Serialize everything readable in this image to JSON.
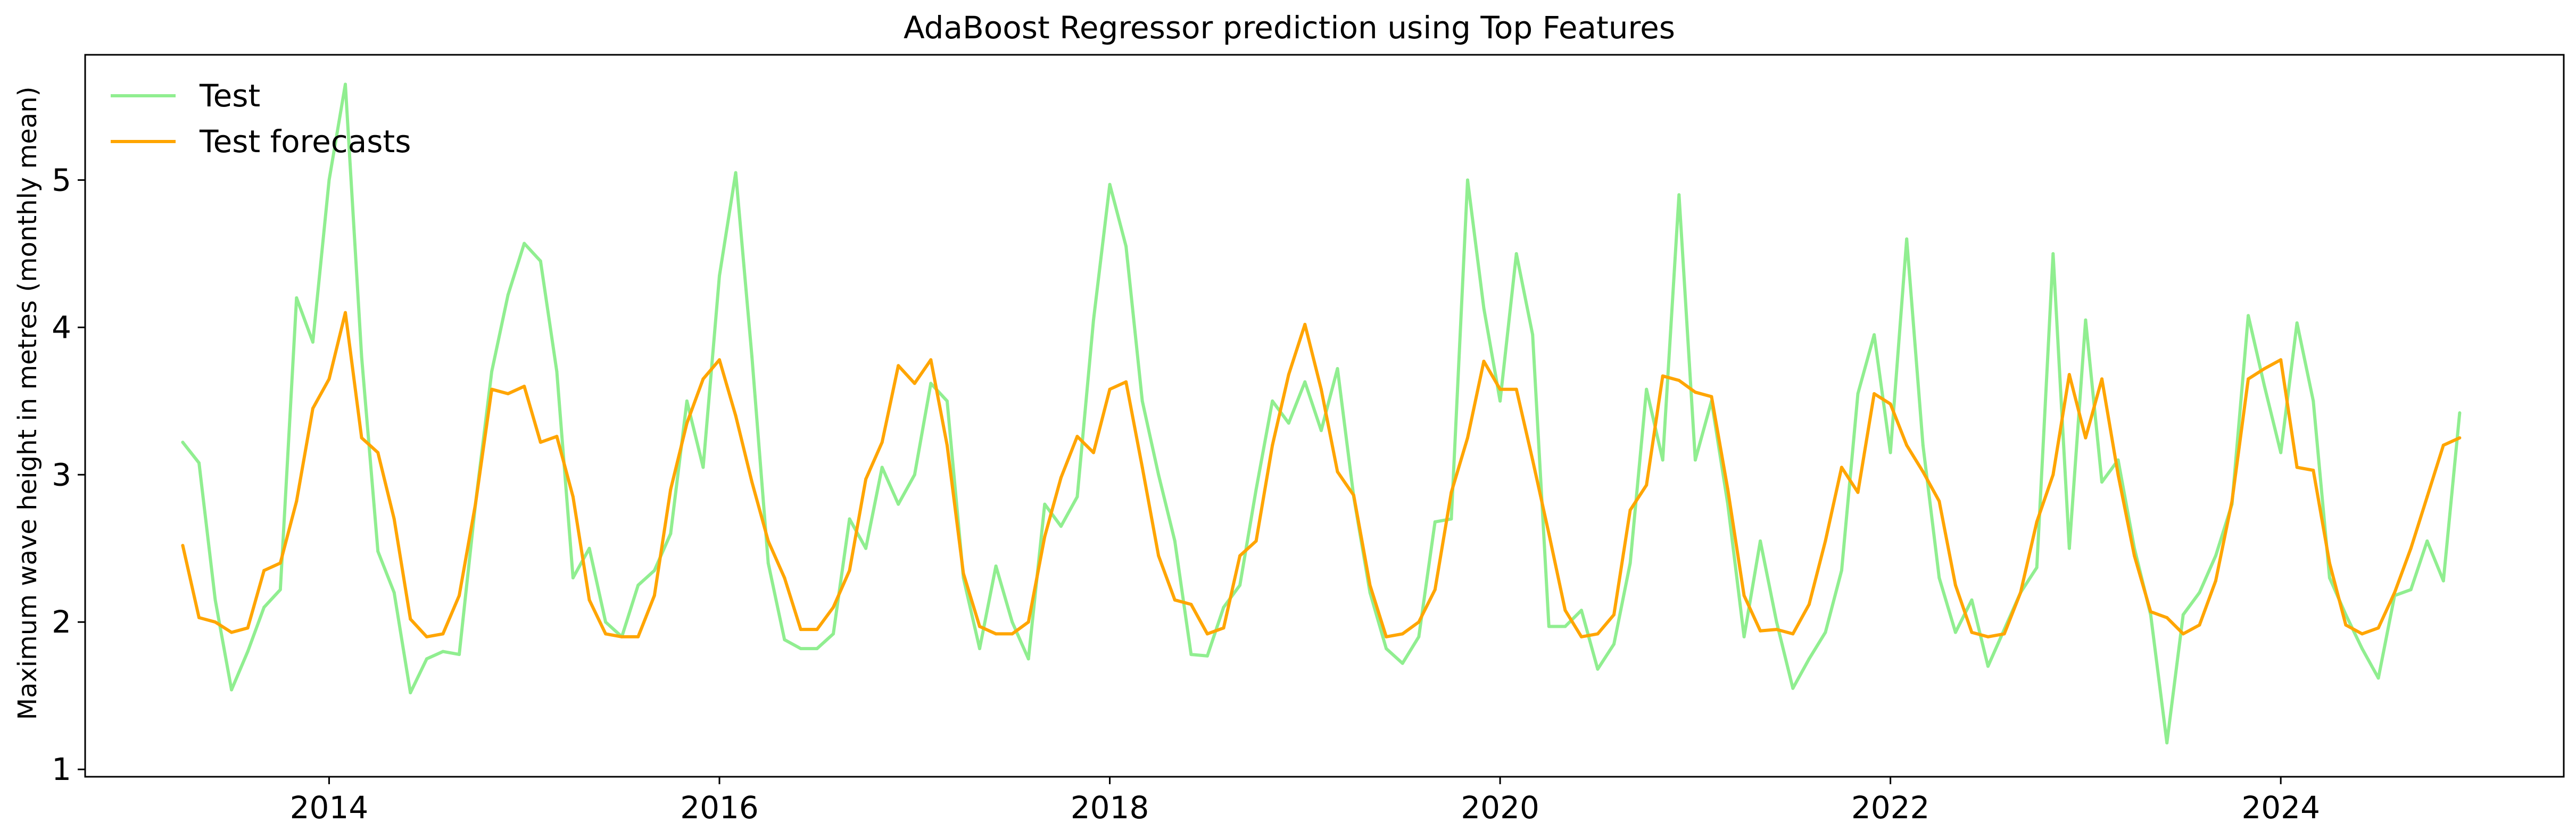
{
  "chart_data": {
    "type": "line",
    "title": "AdaBoost Regressor prediction using Top Features",
    "xlabel": "",
    "ylabel": "Maximum wave height in metres (monthly mean)",
    "xlim": [
      2012.75,
      2025.45
    ],
    "ylim": [
      0.95,
      5.85
    ],
    "x_ticks": [
      2014,
      2016,
      2018,
      2020,
      2022,
      2024
    ],
    "x_tick_labels": [
      "2014",
      "2016",
      "2018",
      "2020",
      "2022",
      "2024"
    ],
    "y_ticks": [
      1,
      2,
      3,
      4,
      5
    ],
    "y_tick_labels": [
      "1",
      "2",
      "3",
      "4",
      "5"
    ],
    "x_start": 2013.25,
    "x_step": 0.0833333,
    "grid": false,
    "legend_position": "top-left",
    "series": [
      {
        "name": "Test",
        "color": "#90ee90",
        "values": [
          3.22,
          3.08,
          2.15,
          1.54,
          1.8,
          2.1,
          2.22,
          4.2,
          3.9,
          5.0,
          5.65,
          3.8,
          2.48,
          2.2,
          1.52,
          1.75,
          1.8,
          1.78,
          2.8,
          3.7,
          4.22,
          4.57,
          4.45,
          3.7,
          2.3,
          2.5,
          2.0,
          1.9,
          2.25,
          2.35,
          2.6,
          3.5,
          3.05,
          4.35,
          5.05,
          3.8,
          2.4,
          1.88,
          1.82,
          1.82,
          1.92,
          2.7,
          2.5,
          3.05,
          2.8,
          3.0,
          3.62,
          3.5,
          2.3,
          1.82,
          2.38,
          2.0,
          1.75,
          2.8,
          2.65,
          2.85,
          4.05,
          4.97,
          4.55,
          3.5,
          3.0,
          2.55,
          1.78,
          1.77,
          2.1,
          2.25,
          2.9,
          3.5,
          3.35,
          3.63,
          3.3,
          3.72,
          2.85,
          2.2,
          1.82,
          1.72,
          1.9,
          2.68,
          2.7,
          5.0,
          4.13,
          3.5,
          4.5,
          3.95,
          1.97,
          1.97,
          2.08,
          1.68,
          1.85,
          2.4,
          3.58,
          3.1,
          4.9,
          3.1,
          3.5,
          2.8,
          1.9,
          2.55,
          2.0,
          1.55,
          1.75,
          1.93,
          2.35,
          3.55,
          3.95,
          3.15,
          4.6,
          3.2,
          2.3,
          1.93,
          2.15,
          1.7,
          1.95,
          2.2,
          2.37,
          4.5,
          2.5,
          4.05,
          2.95,
          3.1,
          2.5,
          2.05,
          1.18,
          2.05,
          2.2,
          2.45,
          2.8,
          4.08,
          3.6,
          3.15,
          4.03,
          3.5,
          2.3,
          2.05,
          1.82,
          1.62,
          2.18,
          2.22,
          2.55,
          2.28,
          3.42
        ]
      },
      {
        "name": "Test forecasts",
        "color": "#ffa500",
        "values": [
          2.52,
          2.03,
          2.0,
          1.93,
          1.96,
          2.35,
          2.4,
          2.82,
          3.45,
          3.65,
          4.1,
          3.25,
          3.15,
          2.7,
          2.02,
          1.9,
          1.92,
          2.18,
          2.8,
          3.58,
          3.55,
          3.6,
          3.22,
          3.26,
          2.85,
          2.15,
          1.92,
          1.9,
          1.9,
          2.18,
          2.9,
          3.35,
          3.65,
          3.78,
          3.4,
          2.95,
          2.55,
          2.3,
          1.95,
          1.95,
          2.1,
          2.35,
          2.97,
          3.22,
          3.74,
          3.62,
          3.78,
          3.2,
          2.33,
          1.97,
          1.92,
          1.92,
          2.0,
          2.58,
          2.98,
          3.26,
          3.15,
          3.58,
          3.63,
          3.05,
          2.45,
          2.15,
          2.12,
          1.92,
          1.96,
          2.45,
          2.55,
          3.2,
          3.68,
          4.02,
          3.58,
          3.02,
          2.86,
          2.25,
          1.9,
          1.92,
          2.0,
          2.22,
          2.88,
          3.25,
          3.77,
          3.58,
          3.58,
          3.1,
          2.6,
          2.08,
          1.9,
          1.92,
          2.05,
          2.76,
          2.93,
          3.67,
          3.64,
          3.56,
          3.53,
          2.9,
          2.18,
          1.94,
          1.95,
          1.92,
          2.12,
          2.55,
          3.05,
          2.88,
          3.55,
          3.48,
          3.2,
          3.02,
          2.82,
          2.25,
          1.93,
          1.9,
          1.92,
          2.2,
          2.68,
          3.0,
          3.68,
          3.25,
          3.65,
          3.0,
          2.45,
          2.07,
          2.03,
          1.92,
          1.98,
          2.28,
          2.82,
          3.65,
          3.72,
          3.78,
          3.05,
          3.03,
          2.4,
          1.98,
          1.92,
          1.96,
          2.2,
          2.5,
          2.85,
          3.2,
          3.25
        ]
      }
    ]
  }
}
